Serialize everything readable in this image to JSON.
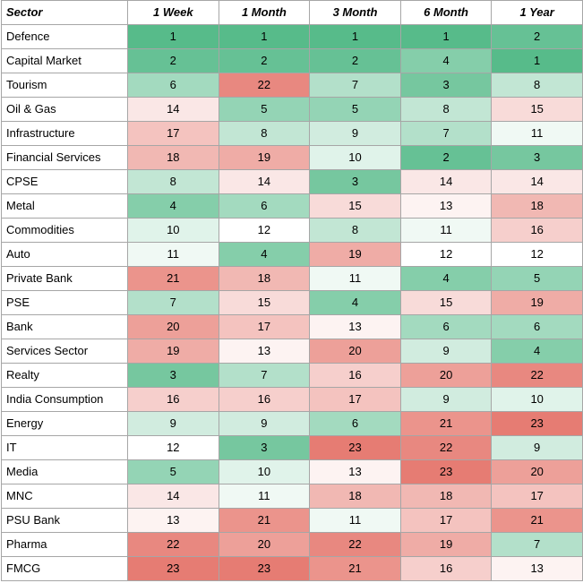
{
  "table": {
    "headers": [
      "Sector",
      "1 Week",
      "1 Month",
      "3 Month",
      "6 Month",
      "1 Year"
    ],
    "color_scale": {
      "best": "#57bb8a",
      "mid": "#ffffff",
      "worst": "#e67c73",
      "min_rank": 1,
      "mid_rank": 12,
      "max_rank": 23
    },
    "rows": [
      {
        "sector": "Defence",
        "values": [
          1,
          1,
          1,
          1,
          2
        ]
      },
      {
        "sector": "Capital Market",
        "values": [
          2,
          2,
          2,
          4,
          1
        ]
      },
      {
        "sector": "Tourism",
        "values": [
          6,
          22,
          7,
          3,
          8
        ]
      },
      {
        "sector": "Oil & Gas",
        "values": [
          14,
          5,
          5,
          8,
          15
        ]
      },
      {
        "sector": "Infrastructure",
        "values": [
          17,
          8,
          9,
          7,
          11
        ]
      },
      {
        "sector": "Financial Services",
        "values": [
          18,
          19,
          10,
          2,
          3
        ]
      },
      {
        "sector": "CPSE",
        "values": [
          8,
          14,
          3,
          14,
          14
        ]
      },
      {
        "sector": "Metal",
        "values": [
          4,
          6,
          15,
          13,
          18
        ]
      },
      {
        "sector": "Commodities",
        "values": [
          10,
          12,
          8,
          11,
          16
        ]
      },
      {
        "sector": "Auto",
        "values": [
          11,
          4,
          19,
          12,
          12
        ]
      },
      {
        "sector": "Private Bank",
        "values": [
          21,
          18,
          11,
          4,
          5
        ]
      },
      {
        "sector": "PSE",
        "values": [
          7,
          15,
          4,
          15,
          19
        ]
      },
      {
        "sector": "Bank",
        "values": [
          20,
          17,
          13,
          6,
          6
        ]
      },
      {
        "sector": "Services Sector",
        "values": [
          19,
          13,
          20,
          9,
          4
        ]
      },
      {
        "sector": "Realty",
        "values": [
          3,
          7,
          16,
          20,
          22
        ]
      },
      {
        "sector": "India Consumption",
        "values": [
          16,
          16,
          17,
          9,
          10
        ]
      },
      {
        "sector": "Energy",
        "values": [
          9,
          9,
          6,
          21,
          23
        ]
      },
      {
        "sector": "IT",
        "values": [
          12,
          3,
          23,
          22,
          9
        ]
      },
      {
        "sector": "Media",
        "values": [
          5,
          10,
          13,
          23,
          20
        ]
      },
      {
        "sector": "MNC",
        "values": [
          14,
          11,
          18,
          18,
          17
        ]
      },
      {
        "sector": "PSU Bank",
        "values": [
          13,
          21,
          11,
          17,
          21
        ]
      },
      {
        "sector": "Pharma",
        "values": [
          22,
          20,
          22,
          19,
          7
        ]
      },
      {
        "sector": "FMCG",
        "values": [
          23,
          23,
          21,
          16,
          13
        ]
      }
    ]
  }
}
